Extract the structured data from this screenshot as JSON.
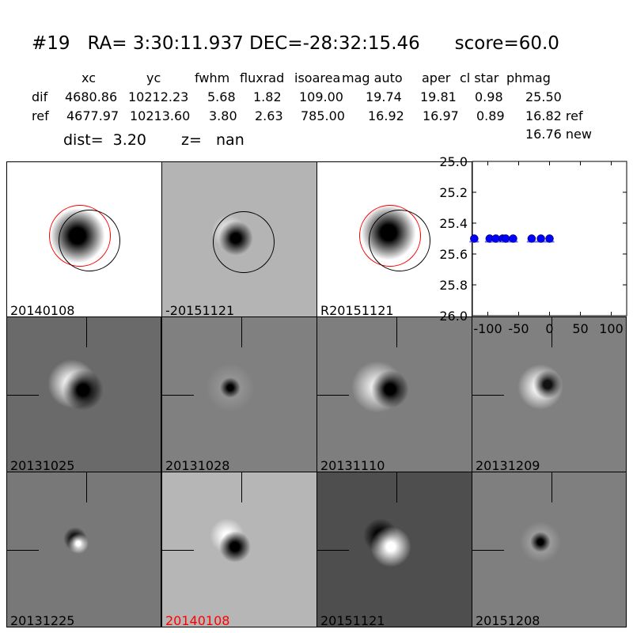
{
  "header": {
    "title": "#19   RA= 3:30:11.937 DEC=-28:32:15.46      score=60.0",
    "columns": [
      "xc",
      "yc",
      "fwhm",
      "fluxrad",
      "isoarea",
      "mag auto",
      "aper",
      "cl star",
      "phmag"
    ],
    "rows": [
      {
        "label": "dif",
        "values": [
          "4680.86",
          "10212.23",
          "5.68",
          "1.82",
          "109.00",
          "19.74",
          "19.81",
          "0.98",
          "25.50"
        ]
      },
      {
        "label": "ref",
        "values": [
          "4677.97",
          "10213.60",
          "3.80",
          "2.63",
          "785.00",
          "16.92",
          "16.97",
          "0.89",
          "16.82 ref"
        ]
      }
    ],
    "extra_phmag": "16.76 new",
    "dist": "dist=  3.20",
    "z": "z=   nan"
  },
  "stamps": [
    {
      "label": "20140108",
      "background": "#ffffff",
      "label_color": "#000000"
    },
    {
      "label": "-20151121",
      "background": "#b4b4b4",
      "label_color": "#000000"
    },
    {
      "label": "R20151121",
      "background": "#ffffff",
      "label_color": "#000000"
    },
    {
      "label": "20131025",
      "background": "#6a6a6a",
      "label_color": "#000000"
    },
    {
      "label": "20131028",
      "background": "#808080",
      "label_color": "#000000"
    },
    {
      "label": "20131110",
      "background": "#7e7e7e",
      "label_color": "#000000"
    },
    {
      "label": "20131209",
      "background": "#808080",
      "label_color": "#000000"
    },
    {
      "label": "20131225",
      "background": "#787878",
      "label_color": "#000000"
    },
    {
      "label": "20140108",
      "background": "#b6b6b6",
      "label_color": "#ff0000"
    },
    {
      "label": "20151121",
      "background": "#4e4e4e",
      "label_color": "#000000"
    },
    {
      "label": "20151208",
      "background": "#7f7f7f",
      "label_color": "#000000"
    }
  ],
  "chart_data": {
    "type": "scatter",
    "x": [
      -122,
      -97,
      -87,
      -76,
      -71,
      -59,
      -29,
      -14,
      0
    ],
    "y": [
      25.5,
      25.5,
      25.5,
      25.5,
      25.5,
      25.5,
      25.5,
      25.5,
      25.5
    ],
    "xlim": [
      -125,
      125
    ],
    "ylim": [
      26.0,
      25.0
    ],
    "y_inverted": true,
    "xticks": [
      "-100",
      "-50",
      "0",
      "50",
      "100"
    ],
    "yticks": [
      "25.0",
      "25.2",
      "25.4",
      "25.6",
      "25.8",
      "26.0"
    ],
    "marker_color": "#0000ff",
    "grid": false
  }
}
